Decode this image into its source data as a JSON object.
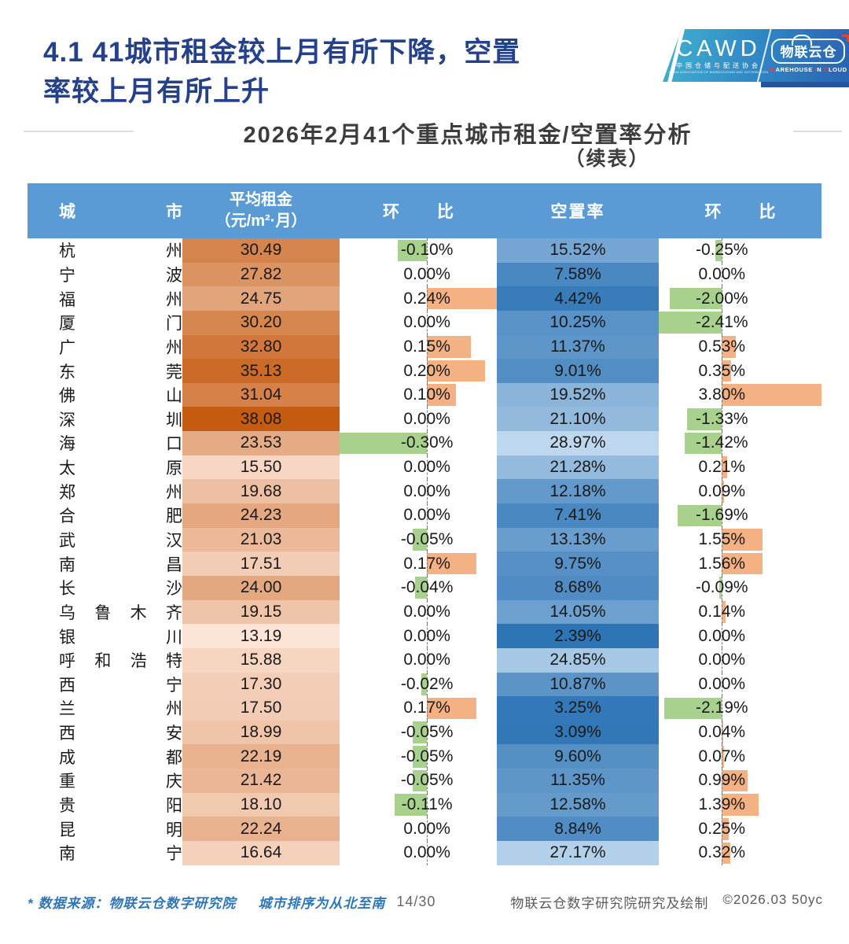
{
  "page": {
    "title_line1": "4.1 41城市租金较上月有所下降，空置",
    "title_line2": "率较上月有所上升",
    "subtitle": "2026年2月41个重点城市租金/空置率分析",
    "subtitle_cont": "（续表）"
  },
  "logo": {
    "cawd_acronym": "CAWD",
    "cawd_cn": "中国仓储与配送协会",
    "cawd_en": "CHINA ASSOCIATION OF WAREHOUSING AND DISTRIBUTION",
    "cloud_cn": "物联云仓",
    "cloud_en_segments": [
      {
        "text": "W",
        "accent": true
      },
      {
        "text": "AREHOUSE ",
        "accent": false
      },
      {
        "text": "I",
        "accent": true
      },
      {
        "text": "N ",
        "accent": false
      },
      {
        "text": "C",
        "accent": true
      },
      {
        "text": "LOUD",
        "accent": false
      }
    ]
  },
  "table_headers": {
    "city": "城市",
    "rent_line1": "平均租金",
    "rent_line2": "（元/m²·月）",
    "mom": "环比",
    "vacancy": "空置率"
  },
  "chart_data": {
    "type": "table",
    "title": "2026年2月41个重点城市租金/空置率分析（续表）",
    "columns": [
      "城市",
      "平均租金（元/m²·月）",
      "环比",
      "空置率",
      "环比"
    ],
    "rows": [
      {
        "city": "杭州",
        "rent": 30.49,
        "rent_mom_pct": -0.1,
        "vacancy_pct": 15.52,
        "vacancy_mom_pct": -0.25
      },
      {
        "city": "宁波",
        "rent": 27.82,
        "rent_mom_pct": 0.0,
        "vacancy_pct": 7.58,
        "vacancy_mom_pct": 0.0
      },
      {
        "city": "福州",
        "rent": 24.75,
        "rent_mom_pct": 0.24,
        "vacancy_pct": 4.42,
        "vacancy_mom_pct": -2.0
      },
      {
        "city": "厦门",
        "rent": 30.2,
        "rent_mom_pct": 0.0,
        "vacancy_pct": 10.25,
        "vacancy_mom_pct": -2.41
      },
      {
        "city": "广州",
        "rent": 32.8,
        "rent_mom_pct": 0.15,
        "vacancy_pct": 11.37,
        "vacancy_mom_pct": 0.53
      },
      {
        "city": "东莞",
        "rent": 35.13,
        "rent_mom_pct": 0.2,
        "vacancy_pct": 9.01,
        "vacancy_mom_pct": 0.35
      },
      {
        "city": "佛山",
        "rent": 31.04,
        "rent_mom_pct": 0.1,
        "vacancy_pct": 19.52,
        "vacancy_mom_pct": 3.8
      },
      {
        "city": "深圳",
        "rent": 38.08,
        "rent_mom_pct": 0.0,
        "vacancy_pct": 21.1,
        "vacancy_mom_pct": -1.33
      },
      {
        "city": "海口",
        "rent": 23.53,
        "rent_mom_pct": -0.3,
        "vacancy_pct": 28.97,
        "vacancy_mom_pct": -1.42
      },
      {
        "city": "太原",
        "rent": 15.5,
        "rent_mom_pct": 0.0,
        "vacancy_pct": 21.28,
        "vacancy_mom_pct": 0.21
      },
      {
        "city": "郑州",
        "rent": 19.68,
        "rent_mom_pct": 0.0,
        "vacancy_pct": 12.18,
        "vacancy_mom_pct": 0.09
      },
      {
        "city": "合肥",
        "rent": 24.23,
        "rent_mom_pct": 0.0,
        "vacancy_pct": 7.41,
        "vacancy_mom_pct": -1.69
      },
      {
        "city": "武汉",
        "rent": 21.03,
        "rent_mom_pct": -0.05,
        "vacancy_pct": 13.13,
        "vacancy_mom_pct": 1.55
      },
      {
        "city": "南昌",
        "rent": 17.51,
        "rent_mom_pct": 0.17,
        "vacancy_pct": 9.75,
        "vacancy_mom_pct": 1.56
      },
      {
        "city": "长沙",
        "rent": 24.0,
        "rent_mom_pct": -0.04,
        "vacancy_pct": 8.68,
        "vacancy_mom_pct": -0.09
      },
      {
        "city": "乌鲁木齐",
        "rent": 19.15,
        "rent_mom_pct": 0.0,
        "vacancy_pct": 14.05,
        "vacancy_mom_pct": 0.14
      },
      {
        "city": "银川",
        "rent": 13.19,
        "rent_mom_pct": 0.0,
        "vacancy_pct": 2.39,
        "vacancy_mom_pct": 0.0
      },
      {
        "city": "呼和浩特",
        "rent": 15.88,
        "rent_mom_pct": 0.0,
        "vacancy_pct": 24.85,
        "vacancy_mom_pct": 0.0
      },
      {
        "city": "西宁",
        "rent": 17.3,
        "rent_mom_pct": -0.02,
        "vacancy_pct": 10.87,
        "vacancy_mom_pct": 0.0
      },
      {
        "city": "兰州",
        "rent": 17.5,
        "rent_mom_pct": 0.17,
        "vacancy_pct": 3.25,
        "vacancy_mom_pct": -2.19
      },
      {
        "city": "西安",
        "rent": 18.99,
        "rent_mom_pct": -0.05,
        "vacancy_pct": 3.09,
        "vacancy_mom_pct": 0.04
      },
      {
        "city": "成都",
        "rent": 22.19,
        "rent_mom_pct": -0.05,
        "vacancy_pct": 9.6,
        "vacancy_mom_pct": 0.07
      },
      {
        "city": "重庆",
        "rent": 21.42,
        "rent_mom_pct": -0.05,
        "vacancy_pct": 11.35,
        "vacancy_mom_pct": 0.99
      },
      {
        "city": "贵阳",
        "rent": 18.1,
        "rent_mom_pct": -0.11,
        "vacancy_pct": 12.58,
        "vacancy_mom_pct": 1.39
      },
      {
        "city": "昆明",
        "rent": 22.24,
        "rent_mom_pct": 0.0,
        "vacancy_pct": 8.84,
        "vacancy_mom_pct": 0.25
      },
      {
        "city": "南宁",
        "rent": 16.64,
        "rent_mom_pct": 0.0,
        "vacancy_pct": 27.17,
        "vacancy_mom_pct": 0.32
      }
    ],
    "conditional_formatting": {
      "rent_color_scale": {
        "min_color": "#FCE4D6",
        "max_color": "#C55A11",
        "note": "higher rent = darker orange"
      },
      "vacancy_color_scale": {
        "min_color": "#2E75B6",
        "max_color": "#BDD7EE",
        "note": "lower vacancy = darker blue"
      },
      "mom_bar_positive_color": "#F4B183",
      "mom_bar_negative_color": "#A9D18E"
    },
    "legend_position": "none",
    "grid": false
  },
  "footer": {
    "source_note": "* 数据来源：物联云仓数字研究院",
    "order_note": "城市排序为从北至南",
    "page_number": "14/30",
    "credit": "物联云仓数字研究院研究及绘制",
    "copyright": "©2026.03 50yc"
  },
  "theme": {
    "title_color": "#24418a",
    "table_header_bg": "#5B9BD5",
    "footer_note_color": "#2E75B6",
    "accent_red": "#e8432e"
  }
}
